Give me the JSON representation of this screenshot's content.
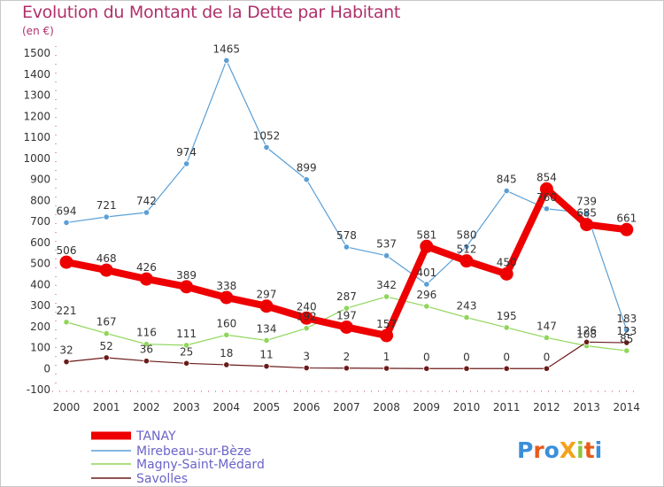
{
  "title": "Evolution du Montant de la Dette par Habitant",
  "unit_label": "(en €)",
  "logo": "ProXiti",
  "chart_data": {
    "type": "line",
    "title": "Evolution du Montant de la Dette par Habitant",
    "subtitle": "(en €)",
    "x": [
      "2000",
      "2001",
      "2002",
      "2003",
      "2004",
      "2005",
      "2006",
      "2007",
      "2008",
      "2009",
      "2010",
      "2011",
      "2012",
      "2013",
      "2014"
    ],
    "ylim": [
      -100,
      1500
    ],
    "yticks": [
      -100,
      0,
      100,
      200,
      300,
      400,
      500,
      600,
      700,
      800,
      900,
      1000,
      1100,
      1200,
      1300,
      1400,
      1500
    ],
    "grid": false,
    "legend_position": "bottom-left",
    "series": [
      {
        "name": "TANAY",
        "color": "#ee0000",
        "values": [
          506,
          468,
          426,
          389,
          338,
          297,
          240,
          197,
          157,
          581,
          512,
          450,
          854,
          685,
          661
        ]
      },
      {
        "name": "Mirebeau-sur-Bèze",
        "color": "#5a9fd6",
        "values": [
          694,
          721,
          742,
          974,
          1465,
          1052,
          899,
          578,
          537,
          401,
          580,
          845,
          760,
          739,
          183
        ]
      },
      {
        "name": "Magny-Saint-Médard",
        "color": "#8fd65a",
        "values": [
          221,
          167,
          116,
          111,
          160,
          134,
          192,
          287,
          342,
          296,
          243,
          195,
          147,
          108,
          85
        ]
      },
      {
        "name": "Savolles",
        "color": "#6b1a1a",
        "values": [
          32,
          52,
          36,
          25,
          18,
          11,
          3,
          2,
          1,
          0,
          0,
          0,
          0,
          126,
          123
        ]
      }
    ]
  }
}
